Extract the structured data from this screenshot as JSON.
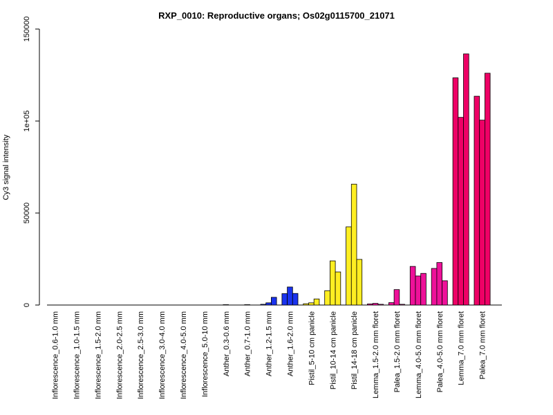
{
  "chart_data": {
    "type": "bar",
    "title": "RXP_0010: Reproductive organs; Os02g0115700_21071",
    "xlabel": "",
    "ylabel": "Cy3 signal intensity",
    "ylim": [
      0,
      150000
    ],
    "yticks": [
      {
        "value": 0,
        "label": "0"
      },
      {
        "value": 50000,
        "label": "50000"
      },
      {
        "value": 100000,
        "label": "1e+05"
      },
      {
        "value": 150000,
        "label": "150000"
      }
    ],
    "grid": false,
    "categories": [
      "Inflorescence_0.6-1.0 mm",
      "Inflorescence_1.0-1.5 mm",
      "Inflorescence_1.5-2.0 mm",
      "Inflorescence_2.0-2.5 mm",
      "Inflorescence_2.5-3.0 mm",
      "Inflorescence_3.0-4.0 mm",
      "Inflorescence_4.0-5.0 mm",
      "Inflorescence_5.0-10 mm",
      "Anther_0.3-0.6 mm",
      "Anther_0.7-1.0 mm",
      "Anther_1.2-1.5 mm",
      "Anther_1.6-2.0 mm",
      "Pistil_5-10 cm panicle",
      "Pistil_10-14 cm panicle",
      "Pistil_14-18 cm panicle",
      "Lemma_1.5-2.0 mm floret",
      "Palea_1.5-2.0 mm floret",
      "Lemma_4.0-5.0 mm floret",
      "Palea_4.0-5.0 mm floret",
      "Lemma_7.0 mm floret",
      "Palea_7.0 mm floret"
    ],
    "colors": [
      "#3344ff",
      "#3344ff",
      "#3344ff",
      "#3344ff",
      "#3344ff",
      "#3344ff",
      "#3344ff",
      "#3344ff",
      "#1a33ee",
      "#1a33ee",
      "#1a33ee",
      "#1a33ee",
      "#ffee22",
      "#ffee22",
      "#ffee22",
      "#ee1199",
      "#ee1199",
      "#ee1199",
      "#ee1199",
      "#ee0066",
      "#ee0066"
    ],
    "values": [
      [
        0,
        0,
        0
      ],
      [
        0,
        0,
        0
      ],
      [
        0,
        0,
        0
      ],
      [
        0,
        0,
        0
      ],
      [
        0,
        0,
        0
      ],
      [
        0,
        0,
        0
      ],
      [
        0,
        0,
        0
      ],
      [
        0,
        0,
        0
      ],
      [
        0,
        200,
        0
      ],
      [
        0,
        200,
        0
      ],
      [
        400,
        1200,
        4200
      ],
      [
        6200,
        9800,
        6300
      ],
      [
        700,
        1200,
        3300
      ],
      [
        7800,
        24000,
        18000
      ],
      [
        42500,
        65700,
        24800
      ],
      [
        600,
        900,
        400
      ],
      [
        1300,
        8400,
        400
      ],
      [
        21000,
        15800,
        17200
      ],
      [
        19900,
        23100,
        13200
      ],
      [
        123500,
        102000,
        136500
      ],
      [
        113500,
        100500,
        126000
      ]
    ]
  }
}
